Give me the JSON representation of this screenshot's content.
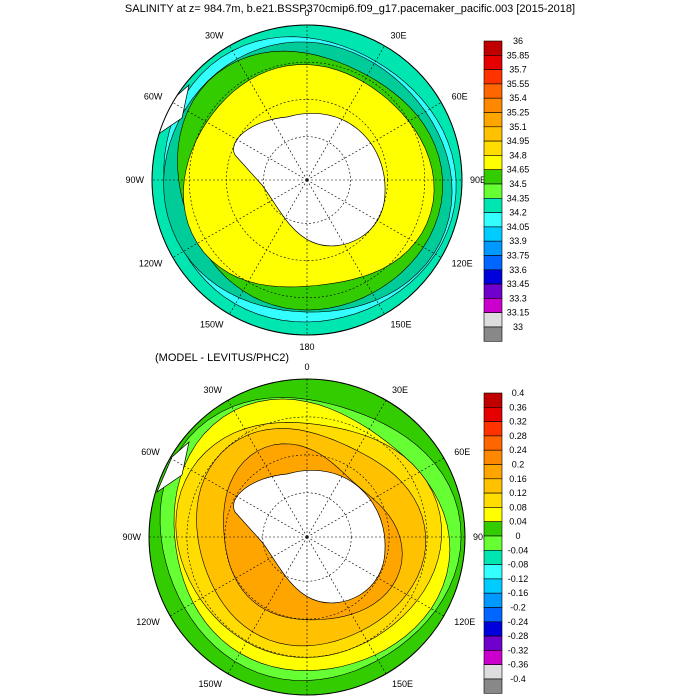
{
  "title": "SALINITY at z= 984.7m, b.e21.BSSP370cmip6.f09_g17.pacemaker_pacific.003 [2015-2018]",
  "subtitle": "(MODEL - LEVITUS/PHC2)",
  "longitude_labels": [
    "0",
    "30E",
    "60E",
    "90E",
    "120E",
    "150E",
    "180",
    "150W",
    "120W",
    "90W",
    "60W",
    "30W"
  ],
  "panels": [
    {
      "name": "salinity",
      "colorbar": {
        "labels": [
          "36",
          "35.85",
          "35.7",
          "35.55",
          "35.4",
          "35.25",
          "35.1",
          "34.95",
          "34.8",
          "34.65",
          "34.5",
          "34.35",
          "34.2",
          "34.05",
          "33.9",
          "33.75",
          "33.6",
          "33.45",
          "33.3",
          "33.15",
          "33"
        ],
        "colors": [
          "#c00000",
          "#e60000",
          "#ff3300",
          "#ff6600",
          "#ff8800",
          "#ffa500",
          "#ffc100",
          "#ffdd00",
          "#ffff00",
          "#33cc00",
          "#66ff33",
          "#00e6b0",
          "#33ffff",
          "#00ccff",
          "#0099ff",
          "#0066ff",
          "#0000dd",
          "#7000cc",
          "#cc00cc",
          "#dddddd",
          "#888888"
        ]
      }
    },
    {
      "name": "difference",
      "colorbar": {
        "labels": [
          "0.4",
          "0.36",
          "0.32",
          "0.28",
          "0.24",
          "0.2",
          "0.16",
          "0.12",
          "0.08",
          "0.04",
          "0",
          "-0.04",
          "-0.08",
          "-0.12",
          "-0.16",
          "-0.2",
          "-0.24",
          "-0.28",
          "-0.32",
          "-0.36",
          "-0.4"
        ],
        "colors": [
          "#c00000",
          "#e60000",
          "#ff3300",
          "#ff6600",
          "#ff8800",
          "#ffa500",
          "#ffc100",
          "#ffdd00",
          "#ffff00",
          "#33cc00",
          "#66ff33",
          "#00e6b0",
          "#33ffff",
          "#00ccff",
          "#0099ff",
          "#0066ff",
          "#0000dd",
          "#7000cc",
          "#cc00cc",
          "#dddddd",
          "#888888"
        ]
      }
    }
  ]
}
